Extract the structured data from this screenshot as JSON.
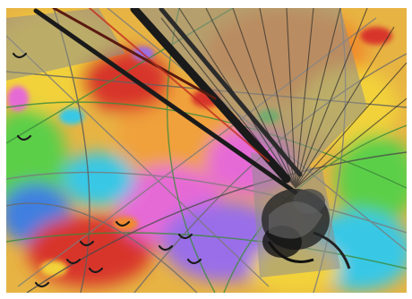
{
  "image": {
    "kind": "abstract-digital-artwork",
    "palette": {
      "frame": "#ffffff",
      "yellow": "#f2d23a",
      "orange": "#f08a2a",
      "red": "#d8352a",
      "magenta": "#e66ad6",
      "violet": "#9a6ee8",
      "blue": "#3f7fe0",
      "cyan": "#38c8e6",
      "green": "#5ccf4a",
      "grey": "#8e8e8e",
      "dark": "#1a1a1a"
    }
  }
}
